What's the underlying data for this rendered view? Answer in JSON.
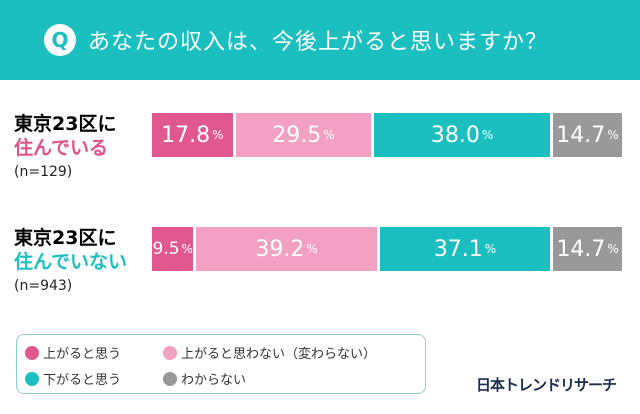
{
  "header": {
    "icon": "Q",
    "title": "あなたの収入は、今後上がると思いますか？"
  },
  "colors": {
    "up": "#e0588f",
    "not_up": "#f2a1c2",
    "down": "#1bbfc0",
    "unknown": "#999999"
  },
  "chart_data": {
    "type": "bar",
    "stacked": true,
    "orientation": "horizontal",
    "xlim": [
      0,
      100
    ],
    "categories": [
      {
        "line1": "東京23区に",
        "line2": "住んでいる",
        "n": "(n=129)"
      },
      {
        "line1": "東京23区に",
        "line2": "住んでいない",
        "n": "(n=943)"
      }
    ],
    "series": [
      {
        "name": "上がると思う",
        "values": [
          17.8,
          9.5
        ],
        "color": "#e0588f"
      },
      {
        "name": "上がると思わない（変わらない）",
        "values": [
          29.5,
          39.2
        ],
        "color": "#f2a1c2"
      },
      {
        "name": "下がると思う",
        "values": [
          38.0,
          37.1
        ],
        "color": "#1bbfc0"
      },
      {
        "name": "わからない",
        "values": [
          14.7,
          14.7
        ],
        "color": "#999999"
      }
    ],
    "value_labels": [
      [
        "17.8",
        "29.5",
        "38.0",
        "14.7"
      ],
      [
        "9.5",
        "39.2",
        "37.1",
        "14.7"
      ]
    ],
    "unit": "%",
    "legend_position": "bottom-left"
  },
  "logo": "日本トレンドリサーチ"
}
